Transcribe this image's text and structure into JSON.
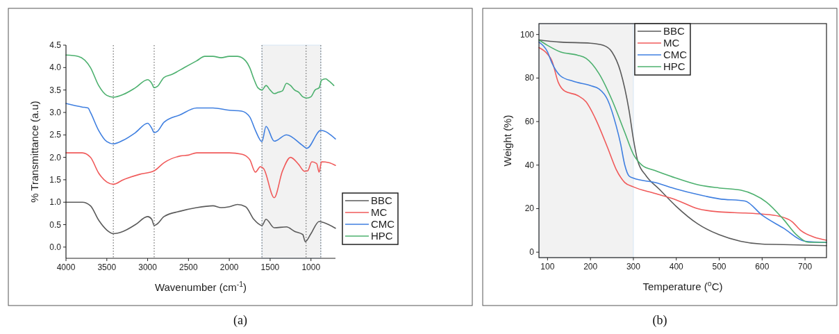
{
  "chart_data": [
    {
      "type": "line",
      "title": "(a)",
      "xlabel": "Wavenumber (cm$^{-1}$)",
      "ylabel": "% Transmittance (a.u)",
      "xlim": [
        4000,
        700
      ],
      "xticks": [
        4000,
        3500,
        3000,
        2500,
        2000,
        1500,
        1000
      ],
      "ylim": [
        -0.25,
        4.5
      ],
      "yticks": [
        {
          "value": 0,
          "label": "0.0"
        },
        {
          "value": 0.5,
          "label": "0.5"
        },
        {
          "value": 1,
          "label": "1.0"
        },
        {
          "value": 1.5,
          "label": "1.5"
        },
        {
          "value": 2,
          "label": "2.0"
        },
        {
          "value": 2.5,
          "label": "2.5"
        },
        {
          "value": 3,
          "label": "3.0"
        },
        {
          "value": 3.5,
          "label": "3.5"
        },
        {
          "value": 4,
          "label": "4.0"
        },
        {
          "value": 4.5,
          "label": "4.5"
        }
      ],
      "legend": "right",
      "grid": false,
      "line_style": "solid",
      "bands": [
        {
          "axis": "x",
          "from": 1600,
          "to": 880,
          "color": "#f2f2f2"
        }
      ],
      "ref_lines": [
        {
          "axis": "x",
          "value": 3420,
          "line_style": "dotted",
          "color": "#777777"
        },
        {
          "axis": "x",
          "value": 2920,
          "line_style": "dotted",
          "color": "#777777"
        },
        {
          "axis": "x",
          "value": 1600,
          "line_style": "dotted",
          "color": "#777777"
        },
        {
          "axis": "x",
          "value": 1060,
          "line_style": "dotted",
          "color": "#777777"
        },
        {
          "axis": "x",
          "value": 880,
          "line_style": "dotted",
          "color": "#777777"
        }
      ],
      "series": [
        {
          "name": "BBC",
          "color": "#5a5a5a",
          "x": [
            4000,
            3800,
            3700,
            3600,
            3500,
            3420,
            3300,
            3150,
            3000,
            2950,
            2920,
            2880,
            2800,
            2600,
            2400,
            2200,
            2100,
            2000,
            1900,
            1800,
            1700,
            1650,
            1600,
            1550,
            1450,
            1300,
            1200,
            1100,
            1070,
            1000,
            900,
            850,
            700
          ],
          "values": [
            1.0,
            1.0,
            0.92,
            0.6,
            0.38,
            0.3,
            0.35,
            0.5,
            0.68,
            0.62,
            0.48,
            0.52,
            0.68,
            0.8,
            0.88,
            0.92,
            0.88,
            0.9,
            0.95,
            0.9,
            0.62,
            0.53,
            0.48,
            0.62,
            0.43,
            0.45,
            0.35,
            0.28,
            0.12,
            0.3,
            0.57,
            0.55,
            0.42
          ]
        },
        {
          "name": "MC",
          "color": "#f05a5a",
          "x": [
            4000,
            3800,
            3700,
            3600,
            3500,
            3420,
            3300,
            3100,
            2920,
            2800,
            2600,
            2500,
            2400,
            2000,
            1850,
            1750,
            1680,
            1620,
            1580,
            1450,
            1350,
            1250,
            1150,
            1080,
            1040,
            990,
            930,
            900,
            870,
            780,
            700
          ],
          "values": [
            2.1,
            2.1,
            2.0,
            1.65,
            1.45,
            1.4,
            1.5,
            1.62,
            1.7,
            1.88,
            2.03,
            2.05,
            2.1,
            2.1,
            2.07,
            1.95,
            1.67,
            1.79,
            1.75,
            1.1,
            1.69,
            2.0,
            1.84,
            1.69,
            1.7,
            1.9,
            1.86,
            1.67,
            1.9,
            1.88,
            1.82
          ]
        },
        {
          "name": "CMC",
          "color": "#3f7fe0",
          "x": [
            4000,
            3800,
            3730,
            3700,
            3600,
            3500,
            3420,
            3300,
            3150,
            3000,
            2950,
            2920,
            2880,
            2800,
            2600,
            2400,
            2200,
            2000,
            1850,
            1750,
            1680,
            1600,
            1550,
            1450,
            1300,
            1100,
            1050,
            880,
            700
          ],
          "values": [
            3.2,
            3.12,
            3.1,
            3.0,
            2.6,
            2.35,
            2.3,
            2.38,
            2.55,
            2.76,
            2.65,
            2.55,
            2.58,
            2.78,
            2.95,
            3.1,
            3.1,
            3.05,
            3.03,
            2.9,
            2.6,
            2.35,
            2.69,
            2.36,
            2.5,
            2.26,
            2.2,
            2.6,
            2.41
          ]
        },
        {
          "name": "HPC",
          "color": "#4cb06e",
          "x": [
            4000,
            3850,
            3700,
            3600,
            3500,
            3420,
            3300,
            3150,
            3000,
            2950,
            2920,
            2880,
            2800,
            2700,
            2550,
            2400,
            2300,
            2200,
            2100,
            2000,
            1900,
            1800,
            1750,
            1700,
            1650,
            1600,
            1550,
            1500,
            1450,
            1400,
            1350,
            1300,
            1250,
            1200,
            1150,
            1100,
            1050,
            1000,
            950,
            900,
            870,
            820,
            780,
            720
          ],
          "values": [
            4.28,
            4.25,
            4.0,
            3.6,
            3.38,
            3.34,
            3.4,
            3.55,
            3.73,
            3.65,
            3.55,
            3.58,
            3.78,
            3.85,
            4.0,
            4.15,
            4.25,
            4.25,
            4.22,
            4.25,
            4.25,
            4.15,
            4.0,
            3.75,
            3.55,
            3.5,
            3.6,
            3.5,
            3.42,
            3.45,
            3.48,
            3.65,
            3.6,
            3.5,
            3.45,
            3.35,
            3.32,
            3.35,
            3.5,
            3.55,
            3.72,
            3.75,
            3.7,
            3.6
          ]
        }
      ]
    },
    {
      "type": "line",
      "title": "(b)",
      "xlabel": "Temperature ($^{o}$C)",
      "ylabel": "Weight (%)",
      "xlim": [
        80,
        750
      ],
      "xticks": [
        100,
        200,
        300,
        400,
        500,
        600,
        700
      ],
      "ylim": [
        -2.5,
        105
      ],
      "yticks": [
        0,
        20,
        40,
        60,
        80,
        100
      ],
      "legend": "top",
      "grid": false,
      "line_style": "solid",
      "bands": [
        {
          "axis": "x",
          "from": 80,
          "to": 300,
          "color": "#f2f2f2"
        }
      ],
      "series": [
        {
          "name": "BBC",
          "color": "#5a5a5a",
          "x": [
            80,
            100,
            130,
            200,
            230,
            250,
            270,
            290,
            300,
            310,
            330,
            360,
            400,
            450,
            500,
            550,
            600,
            650,
            750
          ],
          "values": [
            97.5,
            97,
            96.5,
            96,
            95,
            92,
            83,
            65,
            52,
            42,
            35,
            29,
            21,
            13,
            8,
            5,
            3.7,
            3.5,
            3
          ]
        },
        {
          "name": "MC",
          "color": "#f05a5a",
          "x": [
            80,
            100,
            110,
            125,
            140,
            170,
            190,
            210,
            240,
            260,
            280,
            300,
            350,
            400,
            450,
            500,
            560,
            600,
            640,
            670,
            690,
            720,
            750
          ],
          "values": [
            94,
            91,
            88,
            78,
            74,
            72,
            69,
            62,
            48,
            38,
            32,
            30,
            27,
            24,
            20,
            18.5,
            18,
            17.5,
            16.5,
            14,
            10,
            7,
            5.5
          ]
        },
        {
          "name": "CMC",
          "color": "#3f7fe0",
          "x": [
            80,
            100,
            110,
            130,
            160,
            200,
            220,
            240,
            260,
            270,
            280,
            290,
            300,
            350,
            400,
            450,
            500,
            560,
            600,
            650,
            700,
            750
          ],
          "values": [
            96.5,
            92,
            87,
            81,
            78.5,
            76.5,
            75,
            70,
            58,
            50,
            40,
            35,
            34,
            32,
            29,
            26.5,
            24.5,
            23.5,
            17,
            11,
            5,
            4.5
          ]
        },
        {
          "name": "HPC",
          "color": "#4cb06e",
          "x": [
            80,
            100,
            130,
            170,
            190,
            220,
            250,
            280,
            300,
            320,
            350,
            400,
            450,
            500,
            550,
            580,
            610,
            650,
            680,
            710,
            750
          ],
          "values": [
            97.5,
            95,
            92,
            90.5,
            89,
            82,
            70,
            55,
            45,
            40,
            37.5,
            34,
            31,
            29.5,
            28.5,
            26.5,
            23,
            15,
            8,
            4.5,
            4.5
          ]
        }
      ]
    }
  ]
}
